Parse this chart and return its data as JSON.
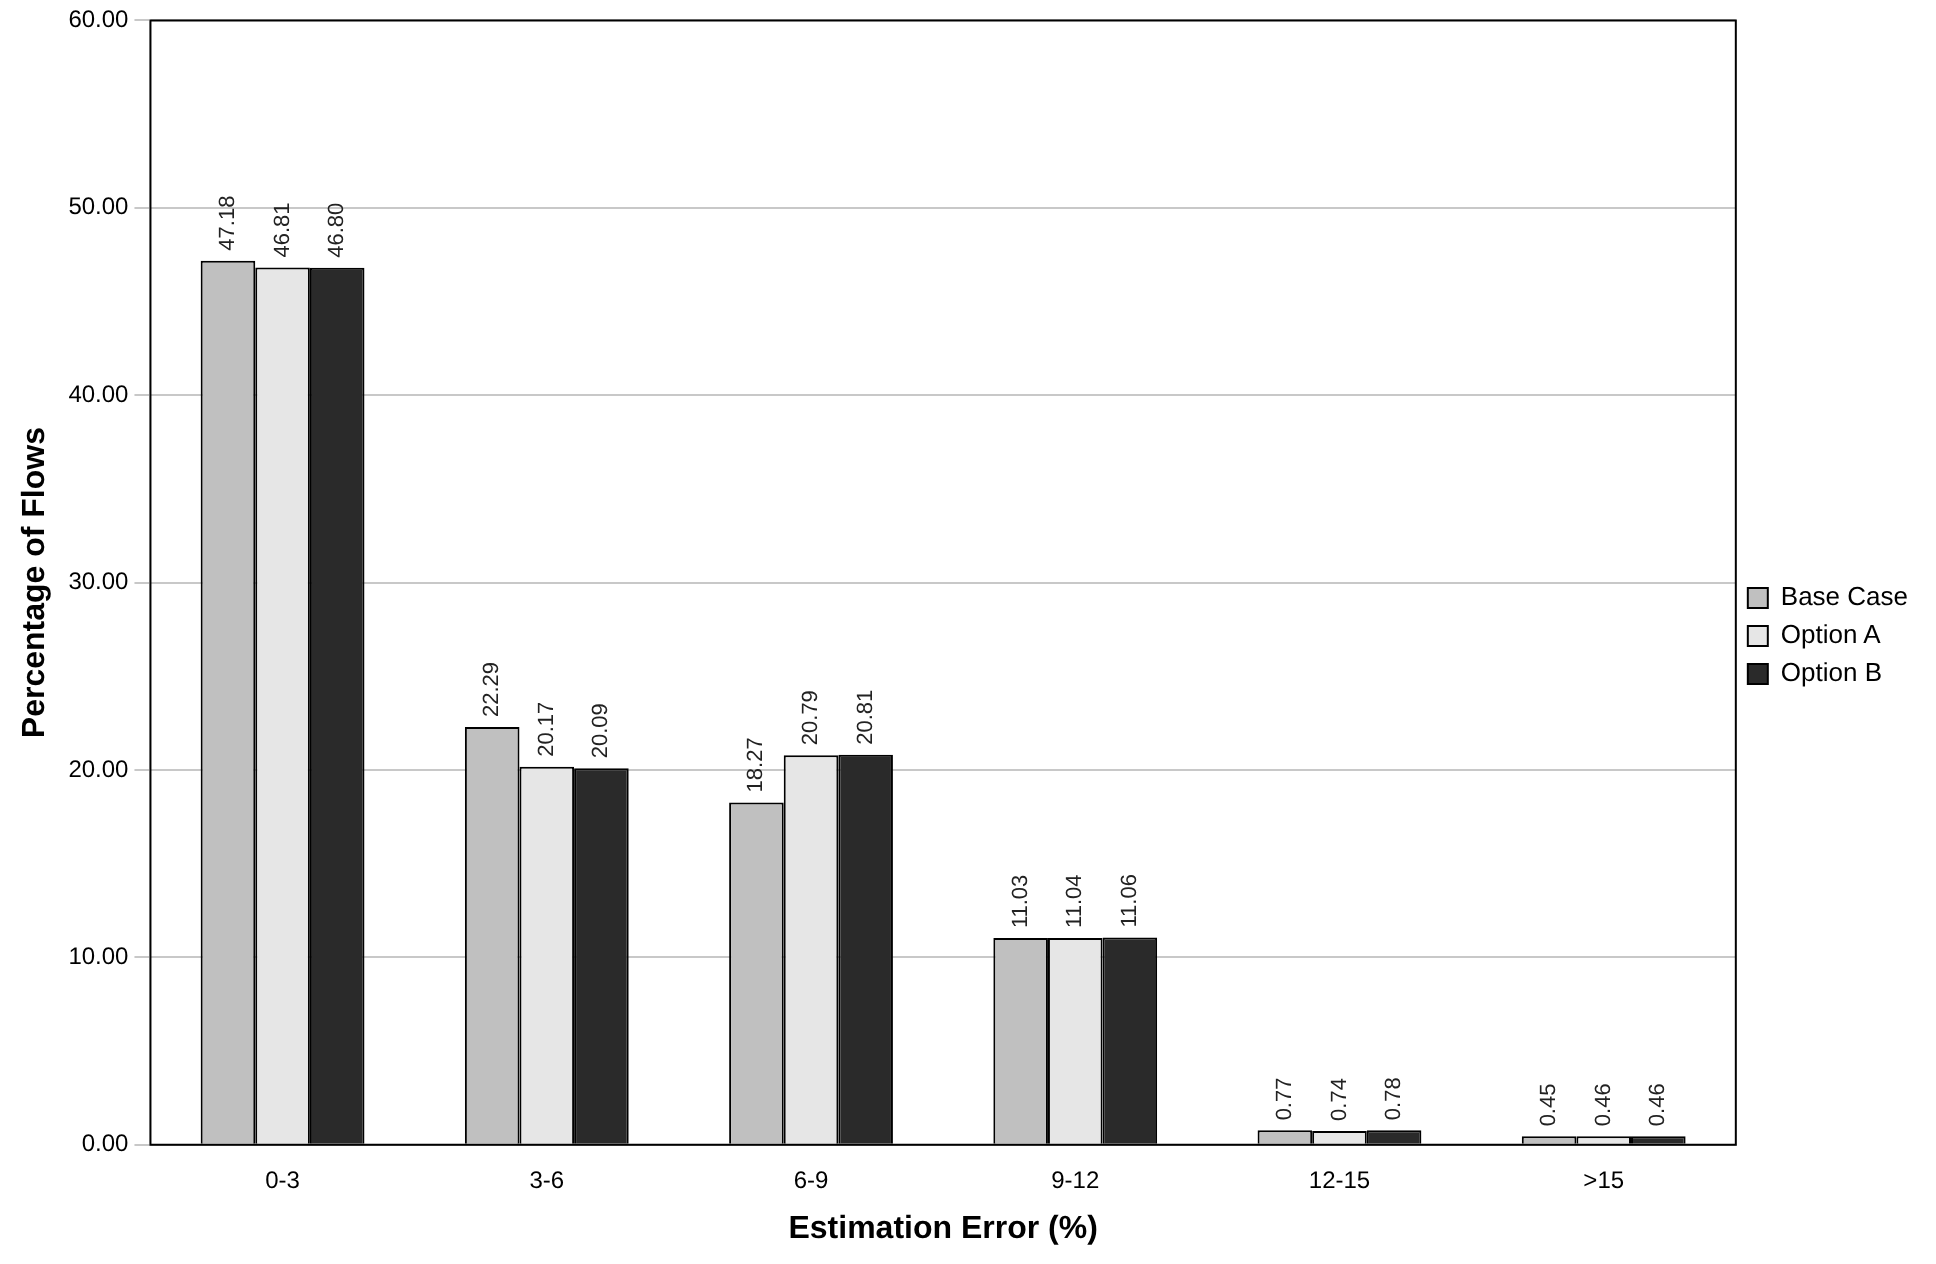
{
  "chart_data": {
    "type": "bar",
    "xlabel": "Estimation Error (%)",
    "ylabel": "Percentage of Flows",
    "categories": [
      "0-3",
      "3-6",
      "6-9",
      "9-12",
      "12-15",
      ">15"
    ],
    "series": [
      {
        "name": "Base Case",
        "color": "#c0c0c0",
        "values": [
          47.18,
          22.29,
          18.27,
          11.03,
          0.77,
          0.45
        ],
        "value_labels": [
          "47.18",
          "22.29",
          "18.27",
          "11.03",
          "0.77",
          "0.45"
        ]
      },
      {
        "name": "Option A",
        "color": "#e6e6e6",
        "values": [
          46.81,
          20.17,
          20.79,
          11.04,
          0.74,
          0.46
        ],
        "value_labels": [
          "46.81",
          "20.17",
          "20.79",
          "11.04",
          "0.74",
          "0.46"
        ]
      },
      {
        "name": "Option B",
        "color": "#2a2a2a",
        "values": [
          46.8,
          20.09,
          20.81,
          11.06,
          0.78,
          0.46
        ],
        "value_labels": [
          "46.80",
          "20.09",
          "20.81",
          "11.06",
          "0.78",
          "0.46"
        ]
      }
    ],
    "ylim": [
      0,
      60
    ],
    "yticks": [
      {
        "value": 0,
        "label": "0.00"
      },
      {
        "value": 10,
        "label": "10.00"
      },
      {
        "value": 20,
        "label": "20.00"
      },
      {
        "value": 30,
        "label": "30.00"
      },
      {
        "value": 40,
        "label": "40.00"
      },
      {
        "value": 50,
        "label": "50.00"
      },
      {
        "value": 60,
        "label": "60.00"
      }
    ],
    "grid": "y",
    "legend": "right"
  }
}
